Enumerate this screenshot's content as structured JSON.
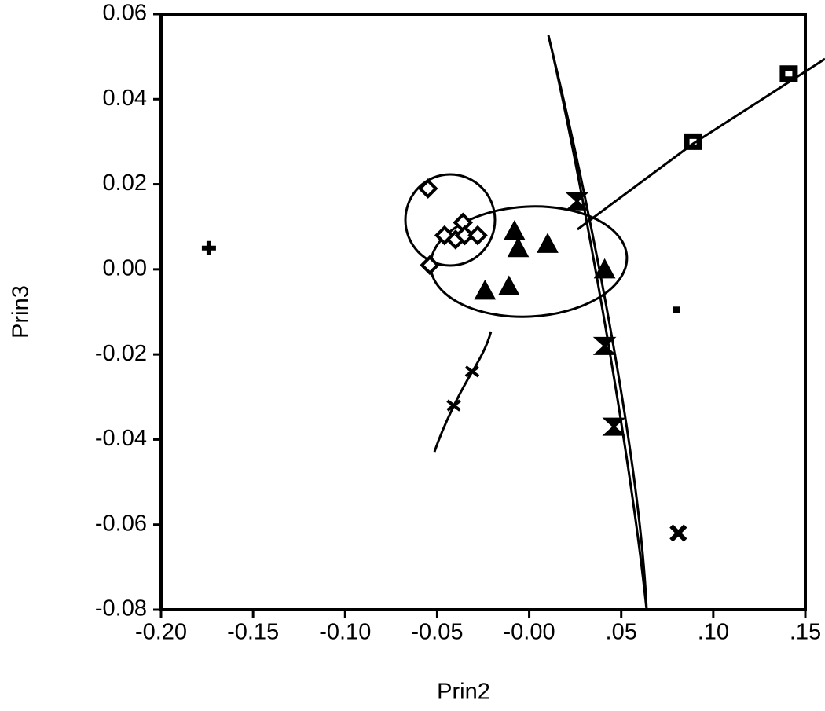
{
  "chart_data": {
    "type": "scatter",
    "xlabel": "Prin2",
    "ylabel": "Prin3",
    "xlim": [
      -0.2,
      0.15
    ],
    "ylim": [
      -0.08,
      0.06
    ],
    "xticks": [
      {
        "value": -0.2,
        "label": "-0.20"
      },
      -0.15,
      {
        "value": -0.1,
        "label": "-0.10"
      },
      -0.05,
      {
        "value": 0,
        "label": "-0.00"
      },
      {
        "value": 0.05,
        "label": ".05"
      },
      {
        "value": 0.1,
        "label": ".10"
      },
      {
        "value": 0.15,
        "label": ".15"
      }
    ],
    "yticks": [
      0.06,
      0.04,
      0.02,
      {
        "value": 0,
        "label": "0.00"
      },
      -0.02,
      -0.04,
      -0.06,
      -0.08
    ],
    "series": [
      {
        "marker": "plus",
        "color": "#000000",
        "x": [
          -0.174
        ],
        "y": [
          0.005
        ]
      },
      {
        "marker": "diamond",
        "color": "#000000",
        "x": [
          -0.055,
          -0.046,
          -0.04,
          -0.036,
          -0.035,
          -0.028,
          -0.054
        ],
        "y": [
          0.019,
          0.008,
          0.007,
          0.011,
          0.008,
          0.008,
          0.001
        ]
      },
      {
        "marker": "triangle",
        "color": "#000000",
        "x": [
          -0.024,
          -0.011,
          -0.008,
          -0.006,
          0.01,
          0.041
        ],
        "y": [
          -0.005,
          -0.004,
          0.009,
          0.005,
          0.006,
          0.0
        ]
      },
      {
        "marker": "hourglass",
        "color": "#000000",
        "x": [
          0.026,
          0.041,
          0.046
        ],
        "y": [
          0.016,
          -0.018,
          -0.037
        ]
      },
      {
        "marker": "square",
        "color": "#000000",
        "x": [
          0.089,
          0.141
        ],
        "y": [
          0.03,
          0.046
        ]
      },
      {
        "marker": "xsmall",
        "color": "#000000",
        "x": [
          -0.041,
          -0.031
        ],
        "y": [
          -0.032,
          -0.024
        ]
      },
      {
        "marker": "xbig",
        "color": "#000000",
        "x": [
          0.081
        ],
        "y": [
          -0.062
        ]
      },
      {
        "marker": "dot",
        "color": "#000000",
        "x": [
          0.08
        ],
        "y": [
          -0.0095
        ]
      }
    ]
  }
}
